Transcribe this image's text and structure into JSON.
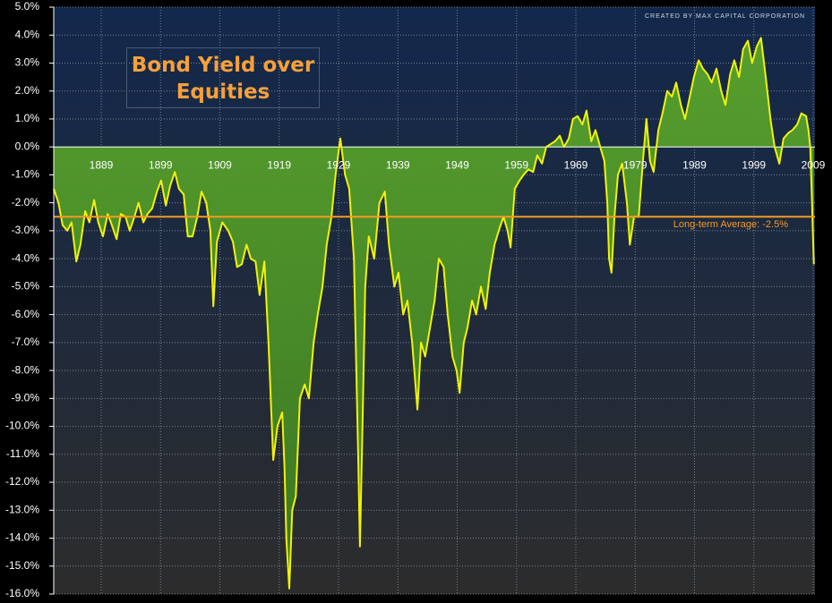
{
  "chart_data": {
    "type": "area",
    "title": "Bond Yield over Equities",
    "credit": "CREATED BY MAX CAPITAL CORPORATION",
    "annotation": "Long-term Average: -2.5%",
    "average": -2.5,
    "average_color": "#f59a23",
    "grid": true,
    "series": [
      {
        "color": "#f2f20a",
        "fill": "#4f9a2a",
        "x": [
          1881.0,
          1881.8,
          1882.5,
          1883.3,
          1884.0,
          1884.8,
          1885.5,
          1886.3,
          1887.0,
          1887.8,
          1888.5,
          1889.3,
          1890.1,
          1890.8,
          1891.6,
          1892.3,
          1893.1,
          1893.8,
          1894.6,
          1895.3,
          1896.1,
          1896.8,
          1897.6,
          1898.4,
          1899.1,
          1899.9,
          1900.6,
          1901.4,
          1902.1,
          1902.9,
          1903.6,
          1904.4,
          1905.2,
          1905.9,
          1906.7,
          1907.4,
          1907.9,
          1908.5,
          1909.4,
          1910.4,
          1911.2,
          1911.9,
          1912.7,
          1913.5,
          1914.2,
          1915.0,
          1915.7,
          1916.5,
          1917.2,
          1918.0,
          1918.7,
          1919.5,
          1919.9,
          1920.2,
          1920.7,
          1921.2,
          1921.8,
          1922.5,
          1923.3,
          1924.0,
          1924.8,
          1925.5,
          1926.3,
          1927.0,
          1927.8,
          1928.5,
          1929.3,
          1930.1,
          1930.8,
          1931.6,
          1931.9,
          1932.3,
          1932.6,
          1933.1,
          1933.5,
          1934.1,
          1935.0,
          1935.9,
          1936.8,
          1937.5,
          1938.4,
          1939.1,
          1939.9,
          1940.6,
          1941.4,
          1942.3,
          1942.9,
          1943.6,
          1944.4,
          1945.2,
          1945.9,
          1946.7,
          1947.4,
          1948.2,
          1948.9,
          1949.4,
          1950.1,
          1950.7,
          1951.5,
          1952.2,
          1953.0,
          1953.8,
          1954.5,
          1955.3,
          1956.0,
          1956.8,
          1957.5,
          1958.0,
          1958.7,
          1959.5,
          1960.2,
          1961.0,
          1961.8,
          1962.5,
          1963.3,
          1964.0,
          1965.5,
          1966.3,
          1967.0,
          1967.8,
          1968.5,
          1969.3,
          1970.1,
          1970.8,
          1971.6,
          1972.3,
          1973.1,
          1973.8,
          1974.3,
          1974.6,
          1975.0,
          1975.5,
          1976.1,
          1976.8,
          1977.6,
          1978.1,
          1978.8,
          1979.6,
          1980.3,
          1980.9,
          1981.5,
          1982.1,
          1982.9,
          1983.6,
          1984.4,
          1985.2,
          1985.9,
          1986.7,
          1987.4,
          1988.2,
          1988.9,
          1989.7,
          1990.4,
          1991.2,
          1991.9,
          1992.7,
          1993.5,
          1994.2,
          1995.0,
          1995.7,
          1996.5,
          1997.2,
          1998.0,
          1998.7,
          1999.5,
          2000.2,
          2001.0,
          2001.8,
          2002.5,
          2003.3,
          2004.0,
          2004.8,
          2005.5,
          2006.3,
          2007.0,
          2007.8,
          2008.2,
          2008.5,
          2008.8,
          2009.1
        ],
        "values": [
          -1.5,
          -2.0,
          -2.8,
          -3.0,
          -2.7,
          -4.1,
          -3.5,
          -2.3,
          -2.7,
          -1.9,
          -2.7,
          -3.2,
          -2.4,
          -2.8,
          -3.3,
          -2.4,
          -2.5,
          -3.0,
          -2.5,
          -2.0,
          -2.7,
          -2.4,
          -2.2,
          -1.6,
          -1.2,
          -2.1,
          -1.4,
          -0.9,
          -1.5,
          -1.7,
          -3.2,
          -3.2,
          -2.5,
          -1.6,
          -2.0,
          -3.0,
          -5.7,
          -3.4,
          -2.7,
          -3.0,
          -3.4,
          -4.3,
          -4.2,
          -3.5,
          -4.0,
          -4.1,
          -5.3,
          -4.1,
          -7.0,
          -11.2,
          -10.0,
          -9.5,
          -11.5,
          -14.0,
          -15.8,
          -13.0,
          -12.5,
          -9.0,
          -8.5,
          -9.0,
          -7.0,
          -6.0,
          -5.0,
          -3.5,
          -2.5,
          -1.0,
          0.3,
          -1.0,
          -1.5,
          -4.0,
          -7.0,
          -11.0,
          -14.3,
          -9.3,
          -5.0,
          -3.2,
          -4.0,
          -2.0,
          -1.6,
          -3.5,
          -5.0,
          -4.5,
          -6.0,
          -5.5,
          -7.0,
          -9.4,
          -7.0,
          -7.5,
          -6.5,
          -5.5,
          -4.0,
          -4.3,
          -6.0,
          -7.5,
          -8.0,
          -8.8,
          -7.0,
          -6.5,
          -5.5,
          -6.0,
          -5.0,
          -5.8,
          -4.5,
          -3.5,
          -3.0,
          -2.5,
          -3.0,
          -3.6,
          -1.5,
          -1.2,
          -1.0,
          -0.8,
          -0.9,
          -0.3,
          -0.6,
          0.0,
          0.2,
          0.4,
          0.0,
          0.3,
          1.0,
          1.1,
          0.8,
          1.3,
          0.2,
          0.6,
          0.0,
          -0.5,
          -2.0,
          -4.0,
          -4.5,
          -2.5,
          -1.0,
          -0.6,
          -2.0,
          -3.5,
          -2.5,
          -2.5,
          -0.5,
          1.0,
          -0.5,
          -0.9,
          0.6,
          1.2,
          2.0,
          1.8,
          2.3,
          1.5,
          1.0,
          1.8,
          2.5,
          3.1,
          2.8,
          2.6,
          2.3,
          2.8,
          2.0,
          1.5,
          2.6,
          3.1,
          2.5,
          3.5,
          3.8,
          3.0,
          3.6,
          3.9,
          2.5,
          1.0,
          0.0,
          -0.6,
          0.3,
          0.5,
          0.6,
          0.8,
          1.2,
          1.1,
          0.6,
          0.0,
          -2.0,
          -4.2
        ]
      }
    ],
    "xlim": [
      1881,
      2009.3
    ],
    "xticks": [
      1889,
      1899,
      1909,
      1919,
      1929,
      1939,
      1949,
      1959,
      1969,
      1979,
      1989,
      1999,
      2009
    ],
    "ylim": [
      -16,
      5
    ],
    "yticks": [
      {
        "value": -16,
        "label": "-16.0%"
      },
      {
        "value": -15,
        "label": "-15.0%"
      },
      {
        "value": -14,
        "label": "-14.0%"
      },
      {
        "value": -13,
        "label": "-13.0%"
      },
      {
        "value": -12,
        "label": "-12.0%"
      },
      {
        "value": -11,
        "label": "-11.0%"
      },
      {
        "value": -10,
        "label": "-10.0%"
      },
      {
        "value": -9,
        "label": "-9.0%"
      },
      {
        "value": -8,
        "label": "-8.0%"
      },
      {
        "value": -7,
        "label": "-7.0%"
      },
      {
        "value": -6,
        "label": "-6.0%"
      },
      {
        "value": -5,
        "label": "-5.0%"
      },
      {
        "value": -4,
        "label": "-4.0%"
      },
      {
        "value": -3,
        "label": "-3.0%"
      },
      {
        "value": -2,
        "label": "-2.0%"
      },
      {
        "value": -1,
        "label": "-1.0%"
      },
      {
        "value": 0,
        "label": "0.0%"
      },
      {
        "value": 1,
        "label": "1.0%"
      },
      {
        "value": 2,
        "label": "2.0%"
      },
      {
        "value": 3,
        "label": "3.0%"
      },
      {
        "value": 4,
        "label": "4.0%"
      },
      {
        "value": 5,
        "label": "5.0%"
      }
    ]
  }
}
